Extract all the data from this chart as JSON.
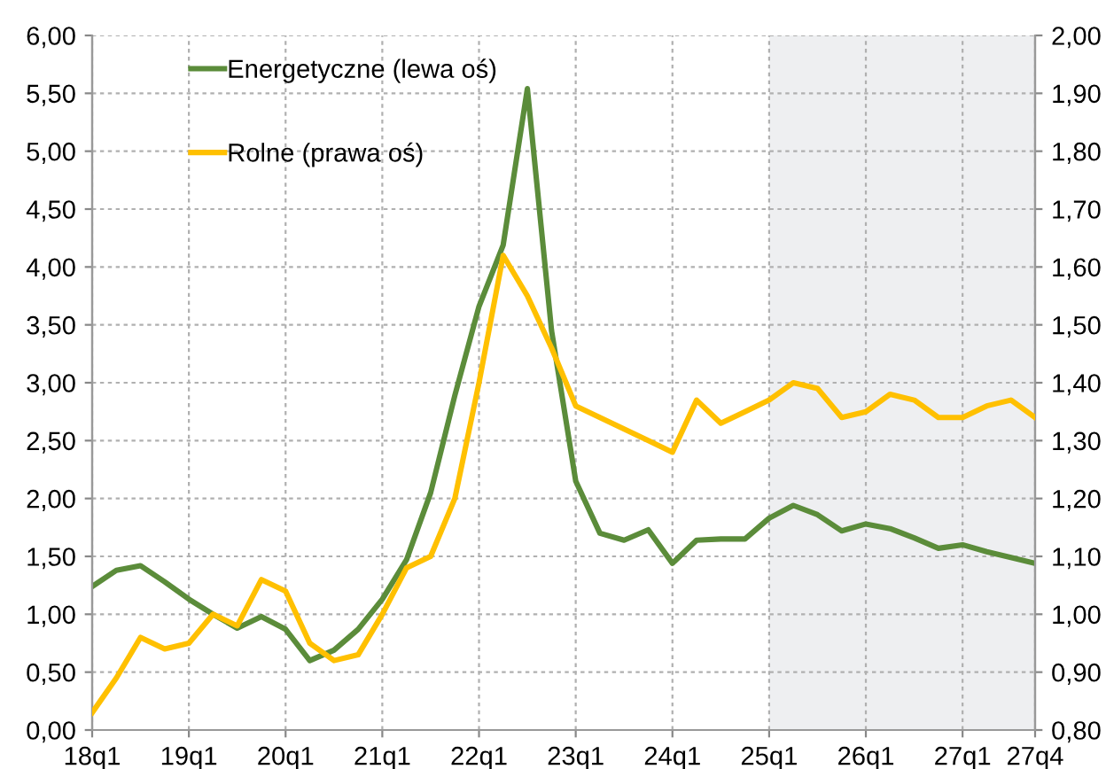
{
  "chart_data": {
    "type": "line",
    "categories": [
      "18q1",
      null,
      null,
      null,
      "19q1",
      null,
      null,
      null,
      "20q1",
      null,
      null,
      null,
      "21q1",
      null,
      null,
      null,
      "22q1",
      null,
      null,
      null,
      "23q1",
      null,
      null,
      null,
      "24q1",
      null,
      null,
      null,
      "25q1",
      null,
      null,
      null,
      "26q1",
      null,
      null,
      null,
      "27q1",
      null,
      null,
      "27q4"
    ],
    "series": [
      {
        "name": "Energetyczne (lewa oś)",
        "color": "#5b8c3a",
        "values": [
          1.24,
          1.38,
          1.42,
          1.28,
          1.13,
          1.0,
          0.88,
          0.98,
          0.87,
          0.6,
          0.69,
          0.87,
          1.13,
          1.47,
          2.05,
          2.89,
          3.66,
          4.19,
          5.54,
          3.45,
          2.15,
          1.7,
          1.64,
          1.73,
          1.44,
          1.64,
          1.65,
          1.65,
          1.83,
          1.94,
          1.86,
          1.72,
          1.78,
          1.74,
          1.66,
          1.57,
          1.6,
          1.54,
          1.49,
          1.44
        ]
      },
      {
        "name": "Rolne (prawa oś)",
        "color": "#ffc000",
        "axis": "y2",
        "values": [
          0.83,
          0.89,
          0.96,
          0.94,
          0.95,
          1.0,
          0.98,
          1.06,
          1.04,
          0.95,
          0.92,
          0.93,
          1.0,
          1.08,
          1.1,
          1.2,
          1.4,
          1.62,
          1.55,
          1.46,
          1.36,
          1.34,
          1.32,
          1.3,
          1.28,
          1.37,
          1.33,
          1.35,
          1.37,
          1.4,
          1.39,
          1.34,
          1.35,
          1.38,
          1.37,
          1.34,
          1.34,
          1.36,
          1.37,
          1.34
        ]
      }
    ],
    "ylim": [
      0,
      6
    ],
    "yticks": [
      {
        "value": 0,
        "label": "0,00"
      },
      {
        "value": 0.5,
        "label": "0,50"
      },
      {
        "value": 1,
        "label": "1,00"
      },
      {
        "value": 1.5,
        "label": "1,50"
      },
      {
        "value": 2,
        "label": "2,00"
      },
      {
        "value": 2.5,
        "label": "2,50"
      },
      {
        "value": 3,
        "label": "3,00"
      },
      {
        "value": 3.5,
        "label": "3,50"
      },
      {
        "value": 4,
        "label": "4,00"
      },
      {
        "value": 4.5,
        "label": "4,50"
      },
      {
        "value": 5,
        "label": "5,00"
      },
      {
        "value": 5.5,
        "label": "5,50"
      },
      {
        "value": 6,
        "label": "6,00"
      }
    ],
    "y2lim": [
      0.8,
      2.0
    ],
    "y2ticks": [
      {
        "value": 0.8,
        "label": "0,80"
      },
      {
        "value": 0.9,
        "label": "0,90"
      },
      {
        "value": 1.0,
        "label": "1,00"
      },
      {
        "value": 1.1,
        "label": "1,10"
      },
      {
        "value": 1.2,
        "label": "1,20"
      },
      {
        "value": 1.3,
        "label": "1,30"
      },
      {
        "value": 1.4,
        "label": "1,40"
      },
      {
        "value": 1.5,
        "label": "1,50"
      },
      {
        "value": 1.6,
        "label": "1,60"
      },
      {
        "value": 1.7,
        "label": "1,70"
      },
      {
        "value": 1.8,
        "label": "1,80"
      },
      {
        "value": 1.9,
        "label": "1,90"
      },
      {
        "value": 2.0,
        "label": "2,00"
      }
    ],
    "bands": [
      {
        "axis": "x",
        "from": "25q1",
        "to": "27q4",
        "color": "#eeeff1"
      }
    ],
    "grid": true,
    "legend": "top left",
    "marker": "none",
    "line_style": "solid"
  }
}
